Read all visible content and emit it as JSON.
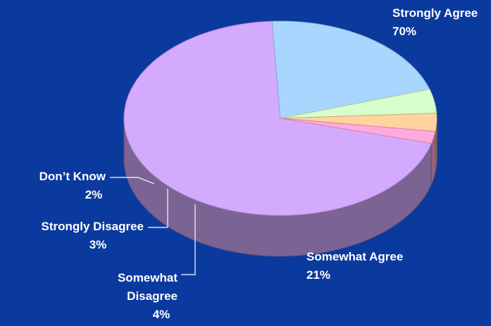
{
  "chart_data": {
    "type": "pie",
    "three_d": true,
    "title": "",
    "slices": [
      {
        "label": "Strongly Agree",
        "label_lines": [
          "Strongly Agree"
        ],
        "value": 70,
        "value_label": "70%",
        "color": "#d4aaff"
      },
      {
        "label": "Somewhat Agree",
        "label_lines": [
          "Somewhat Agree"
        ],
        "value": 21,
        "value_label": "21%",
        "color": "#a8d6ff"
      },
      {
        "label": "Somewhat Disagree",
        "label_lines": [
          "Somewhat",
          "Disagree"
        ],
        "value": 4,
        "value_label": "4%",
        "color": "#d6ffcc"
      },
      {
        "label": "Strongly Disagree",
        "label_lines": [
          "Strongly Disagree"
        ],
        "value": 3,
        "value_label": "3%",
        "color": "#ffd49e"
      },
      {
        "label": "Don’t Know",
        "label_lines": [
          "Don’t Know"
        ],
        "value": 2,
        "value_label": "2%",
        "color": "#ffaadd"
      }
    ],
    "legend": "none",
    "background_color": "#0b3a9e",
    "label_color": "#ffffff"
  }
}
